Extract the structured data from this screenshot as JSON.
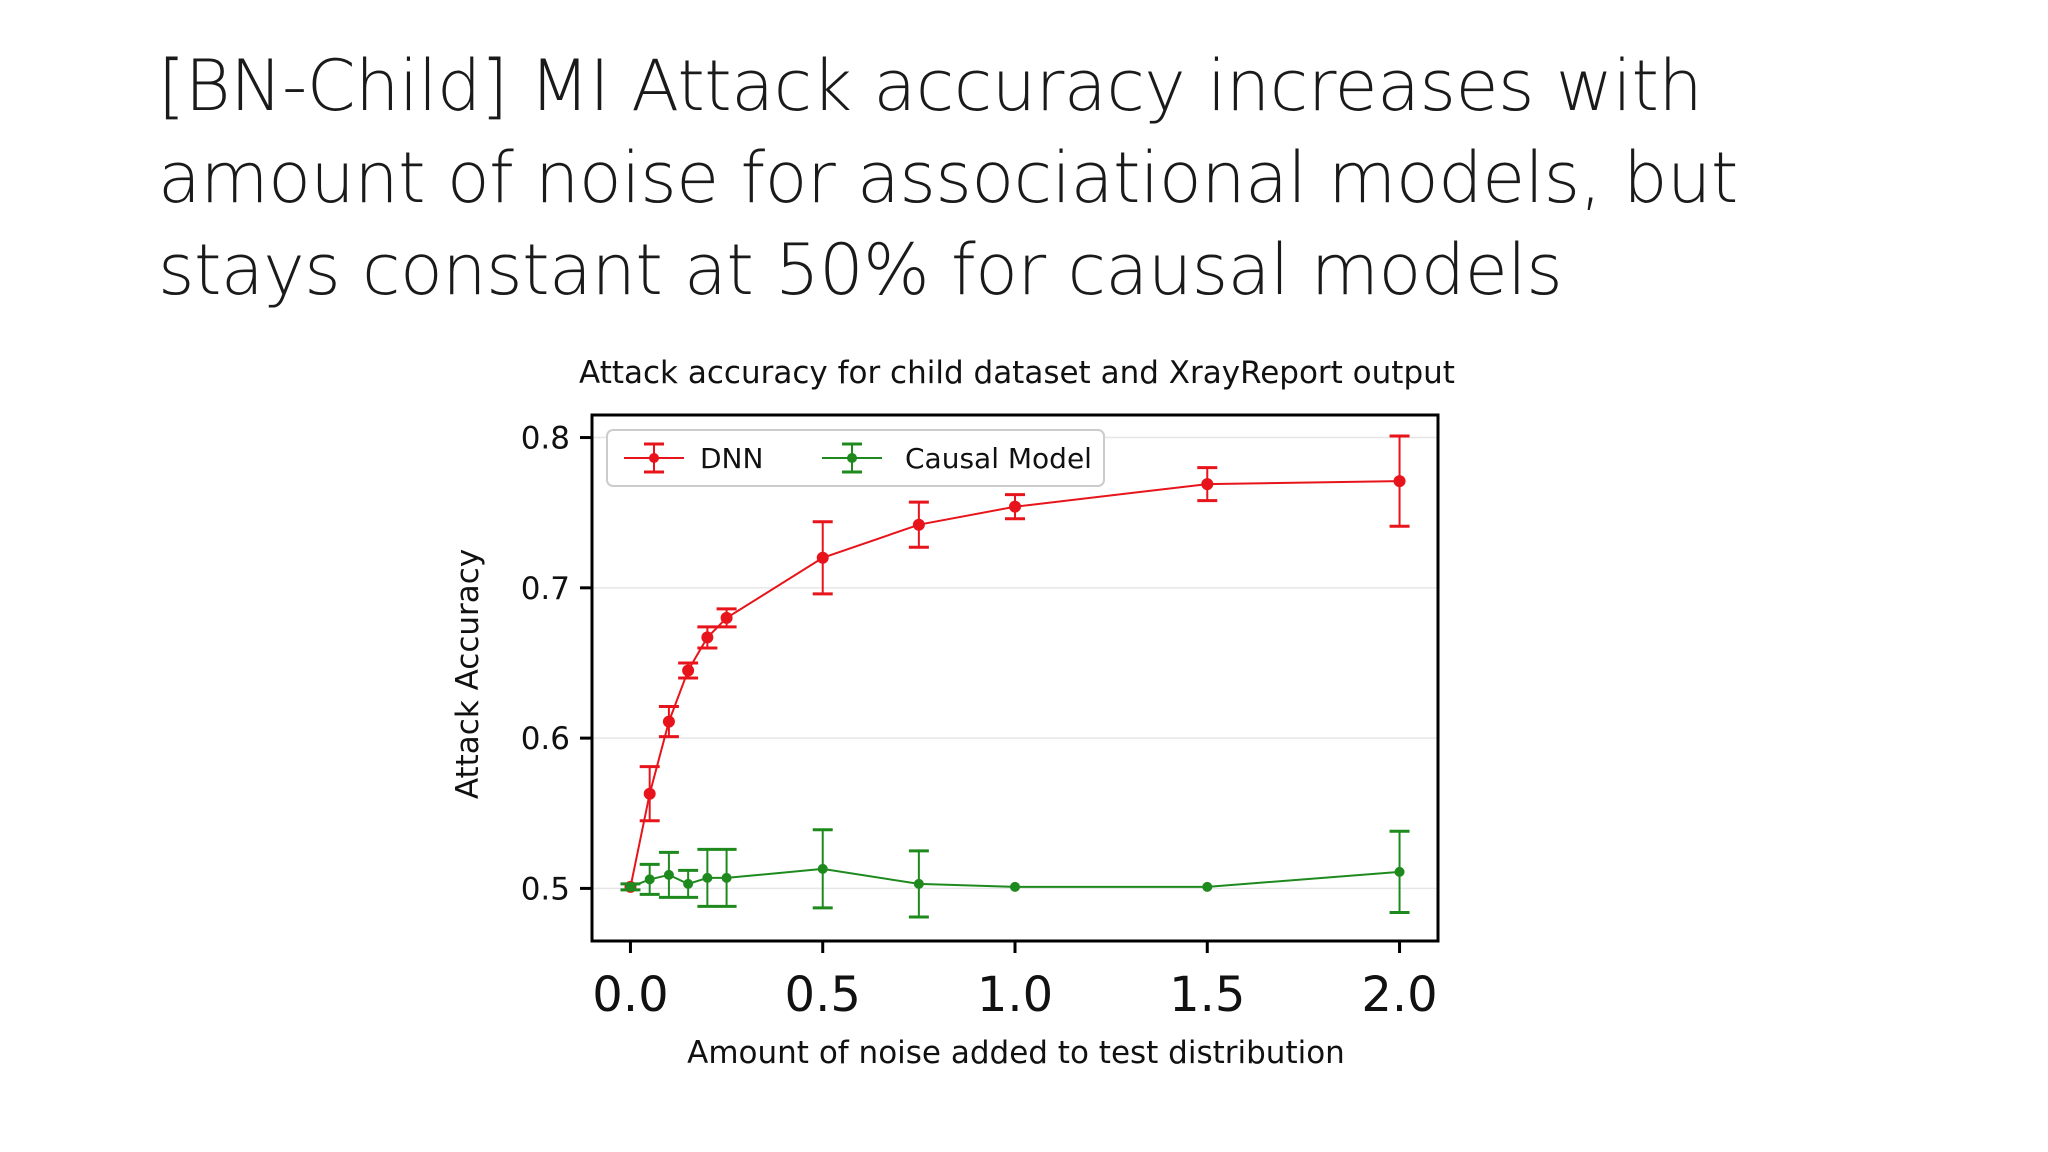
{
  "slide": {
    "title_lines": [
      "[BN-Child] MI Attack accuracy increases with",
      "amount of noise for associational models, but",
      "stays constant at 50% for causal models"
    ]
  },
  "chart_data": {
    "type": "line",
    "title": "Attack accuracy for child dataset and XrayReport output",
    "xlabel": "Amount of noise added to test distribution",
    "ylabel": "Attack Accuracy",
    "xlim": [
      -0.1,
      2.1
    ],
    "ylim": [
      0.465,
      0.815
    ],
    "xticks": [
      0.0,
      0.5,
      1.0,
      1.5,
      2.0
    ],
    "xtick_labels": [
      "0.0",
      "0.5",
      "1.0",
      "1.5",
      "2.0"
    ],
    "yticks": [
      0.5,
      0.6,
      0.7,
      0.8
    ],
    "ytick_labels": [
      "0.5",
      "0.6",
      "0.7",
      "0.8"
    ],
    "grid": true,
    "legend_position": "top-left",
    "series": [
      {
        "name": "DNN",
        "color": "#e8141b",
        "x": [
          0.0,
          0.05,
          0.1,
          0.15,
          0.2,
          0.25,
          0.5,
          0.75,
          1.0,
          1.5,
          2.0
        ],
        "y": [
          0.501,
          0.563,
          0.611,
          0.645,
          0.667,
          0.68,
          0.72,
          0.742,
          0.754,
          0.769,
          0.771
        ],
        "err": [
          0.0,
          0.018,
          0.01,
          0.005,
          0.007,
          0.006,
          0.024,
          0.015,
          0.008,
          0.011,
          0.03
        ]
      },
      {
        "name": "Causal Model",
        "color": "#1e8a1e",
        "x": [
          0.0,
          0.05,
          0.1,
          0.15,
          0.2,
          0.25,
          0.5,
          0.75,
          1.0,
          1.5,
          2.0
        ],
        "y": [
          0.501,
          0.506,
          0.509,
          0.503,
          0.507,
          0.507,
          0.513,
          0.503,
          0.501,
          0.501,
          0.511
        ],
        "err": [
          0.002,
          0.01,
          0.015,
          0.009,
          0.019,
          0.019,
          0.026,
          0.022,
          0.0,
          0.0,
          0.027
        ]
      }
    ]
  }
}
